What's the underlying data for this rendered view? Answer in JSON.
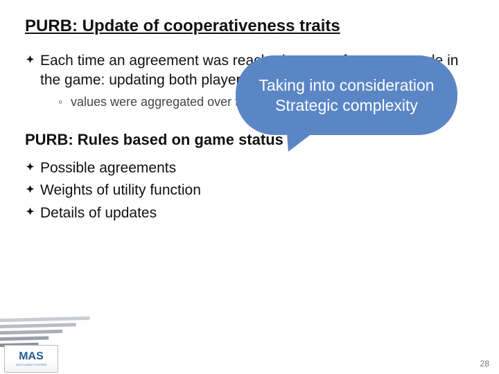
{
  "slide": {
    "title1": "PURB: Update of cooperativeness traits",
    "title2": "PURB: Rules based on game status",
    "section1": {
      "item": "Each time an agreement was reached, or transfers were made in the game: updating both players' traits",
      "sub": "values were aggregated over time using a decaying rate"
    },
    "section2": {
      "items": [
        "Possible agreements",
        "Weights of utility function",
        "Details of updates"
      ]
    },
    "callout": {
      "text": "Taking into consideration Strategic complexity",
      "bg_color": "#5a86c6",
      "text_color": "#ffffff",
      "fontsize": 23
    },
    "logo": {
      "name": "MAS",
      "tagline": "MULTI AGENT SYSTEMS"
    },
    "page_number": "28",
    "colors": {
      "background": "#ffffff",
      "text": "#111111",
      "subtext": "#444444",
      "pagenum": "#777777"
    }
  }
}
